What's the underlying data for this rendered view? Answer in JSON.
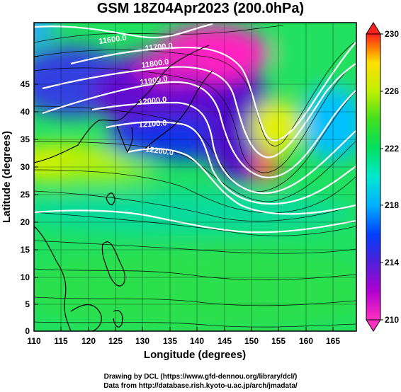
{
  "title": "GSM 18Z04Apr2023 (200.0hPa)",
  "axes": {
    "xlabel": "Longitude (degrees)",
    "ylabel": "Latitude  (degrees)",
    "x_ticks": [
      "110",
      "115",
      "120",
      "125",
      "130",
      "135",
      "140",
      "145",
      "150",
      "155",
      "160",
      "165"
    ],
    "y_ticks": [
      "0",
      "5",
      "10",
      "15",
      "20",
      "25",
      "30",
      "35",
      "40",
      "45"
    ]
  },
  "colorbar": {
    "ticks": [
      "210",
      "214",
      "218",
      "222",
      "226",
      "230"
    ],
    "range": [
      210,
      230
    ],
    "colors": [
      "#ff30c0",
      "#b000d0",
      "#5020d8",
      "#0040ff",
      "#00b0ff",
      "#00e8d0",
      "#00e060",
      "#40e020",
      "#c0f000",
      "#ffe000",
      "#ff8000",
      "#ff2020"
    ]
  },
  "contours": {
    "labels": [
      "11600.0",
      "11700.0",
      "11800.0",
      "11900.0",
      "12000.0",
      "12100.0",
      "12200.0"
    ]
  },
  "credits": {
    "line1": "Drawing by DCL (https://www.gfd-dennou.org/library/dcl/)",
    "line2": "Data from http://database.rish.kyoto-u.ac.jp/arch/jmadata/"
  },
  "chart_data": {
    "type": "heatmap",
    "title": "GSM 18Z04Apr2023 (200.0hPa)",
    "xlabel": "Longitude (degrees)",
    "ylabel": "Latitude  (degrees)",
    "xlim": [
      110,
      170
    ],
    "ylim": [
      0,
      50
    ],
    "color_range": [
      210,
      230
    ],
    "grid": true,
    "regions": [
      {
        "lon": 140,
        "lat": 42,
        "value": 212
      },
      {
        "lon": 147,
        "lat": 47,
        "value": 210
      },
      {
        "lon": 130,
        "lat": 43,
        "value": 212
      },
      {
        "lon": 115,
        "lat": 43,
        "value": 214
      },
      {
        "lon": 120,
        "lat": 32,
        "value": 222
      },
      {
        "lon": 153,
        "lat": 29,
        "value": 228
      },
      {
        "lon": 160,
        "lat": 40,
        "value": 217
      },
      {
        "lon": 135,
        "lat": 10,
        "value": 221
      }
    ],
    "contour_levels": [
      11600,
      11700,
      11800,
      11900,
      12000,
      12100,
      12200
    ]
  }
}
